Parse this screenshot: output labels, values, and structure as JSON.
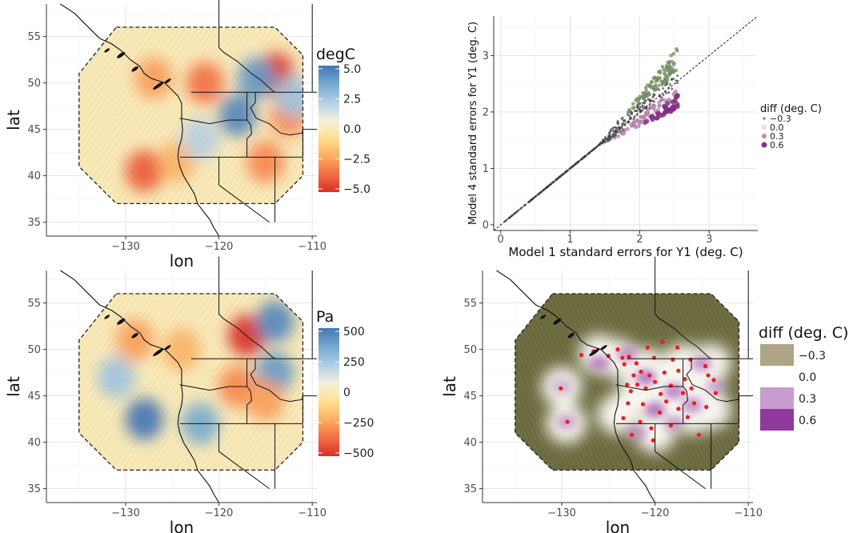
{
  "chart_data": [
    {
      "type": "heatmap",
      "panel": "top-left",
      "xlabel": "lon",
      "ylabel": "lat",
      "xticks": [
        -130,
        -120,
        -110
      ],
      "yticks": [
        35,
        40,
        45,
        50,
        55
      ],
      "xlim": [
        -138.5,
        -109.5
      ],
      "ylim": [
        33.5,
        58.5
      ],
      "legend": {
        "title": "degC",
        "ticks": [
          "5.0",
          "2.5",
          "0.0",
          "-2.5",
          "-5.0"
        ],
        "range": [
          -5,
          5
        ],
        "colors": [
          "#d73027",
          "#f46d43",
          "#fdae61",
          "#fee090",
          "#f3f1de",
          "#b0cde4",
          "#74a9cf",
          "#4575b4"
        ]
      },
      "blobs": [
        {
          "lon": -114,
          "lat": 51,
          "value": -5
        },
        {
          "lon": -121.5,
          "lat": 50,
          "value": -3.5
        },
        {
          "lon": -127,
          "lat": 50.5,
          "value": -2.5
        },
        {
          "lon": -118,
          "lat": 46.5,
          "value": 4.5
        },
        {
          "lon": -116,
          "lat": 50.5,
          "value": 4
        },
        {
          "lon": -112.5,
          "lat": 46.5,
          "value": -3
        },
        {
          "lon": -128,
          "lat": 40.5,
          "value": -4
        },
        {
          "lon": -124.5,
          "lat": 41.5,
          "value": -2
        },
        {
          "lon": -115,
          "lat": 41.5,
          "value": -3
        },
        {
          "lon": -122,
          "lat": 44,
          "value": 2
        },
        {
          "lon": -112,
          "lat": 48.5,
          "value": 2.5
        }
      ]
    },
    {
      "type": "scatter",
      "panel": "top-right",
      "xlabel": "Model 1 standard errors for Y1 (deg. C)",
      "ylabel": "Model 4 standard errors for Y1 (deg. C)",
      "xticks": [
        0,
        1,
        2,
        3
      ],
      "yticks": [
        0,
        1,
        2,
        3
      ],
      "xlim": [
        -0.1,
        3.7
      ],
      "ylim": [
        -0.1,
        3.7
      ],
      "reference_line": "y = x",
      "legend": {
        "title": "diff (deg. C)",
        "items": [
          {
            "label": "-0.3",
            "color": "#7fa06a"
          },
          {
            "label": "0.0",
            "color": "#f2f2f2"
          },
          {
            "label": "0.3",
            "color": "#c98cc6"
          },
          {
            "label": "0.6",
            "color": "#8b2c8b"
          }
        ]
      }
    },
    {
      "type": "heatmap",
      "panel": "bottom-left",
      "xlabel": "lon",
      "ylabel": "lat",
      "xticks": [
        -130,
        -120,
        -110
      ],
      "yticks": [
        35,
        40,
        45,
        50,
        55
      ],
      "xlim": [
        -138.5,
        -109.5
      ],
      "ylim": [
        33.5,
        58.5
      ],
      "legend": {
        "title": "Pa",
        "ticks": [
          "500",
          "250",
          "0",
          "-250",
          "-500"
        ],
        "range": [
          -500,
          500
        ],
        "colors": [
          "#d73027",
          "#f46d43",
          "#fdae61",
          "#fee090",
          "#f3f1de",
          "#b0cde4",
          "#74a9cf",
          "#4575b4"
        ]
      },
      "blobs": [
        {
          "lon": -128,
          "lat": 42.5,
          "value": 500
        },
        {
          "lon": -122,
          "lat": 42,
          "value": 350
        },
        {
          "lon": -131,
          "lat": 47,
          "value": 250
        },
        {
          "lon": -117,
          "lat": 51.5,
          "value": -500
        },
        {
          "lon": -114,
          "lat": 53,
          "value": 450
        },
        {
          "lon": -114,
          "lat": 47.5,
          "value": 400
        },
        {
          "lon": -118,
          "lat": 46,
          "value": -300
        },
        {
          "lon": -115,
          "lat": 44.5,
          "value": -250
        },
        {
          "lon": -124,
          "lat": 50,
          "value": -200
        },
        {
          "lon": -129,
          "lat": 51,
          "value": -250
        }
      ]
    },
    {
      "type": "heatmap",
      "panel": "bottom-right",
      "xlabel": "lon",
      "ylabel": "lat",
      "xticks": [
        -130,
        -120,
        -110
      ],
      "yticks": [
        35,
        40,
        45,
        50,
        55
      ],
      "xlim": [
        -138.5,
        -109.5
      ],
      "ylim": [
        33.5,
        58.5
      ],
      "legend": {
        "title": "diff (deg. C)",
        "items": [
          {
            "label": "-0.3",
            "color": "#aea587"
          },
          {
            "label": "0.0",
            "color": "#ffffff"
          },
          {
            "label": "0.3",
            "color": "#c99cd0"
          },
          {
            "label": "0.6",
            "color": "#8e3a9c"
          }
        ]
      },
      "background_color": "#6b6a3e"
    }
  ]
}
